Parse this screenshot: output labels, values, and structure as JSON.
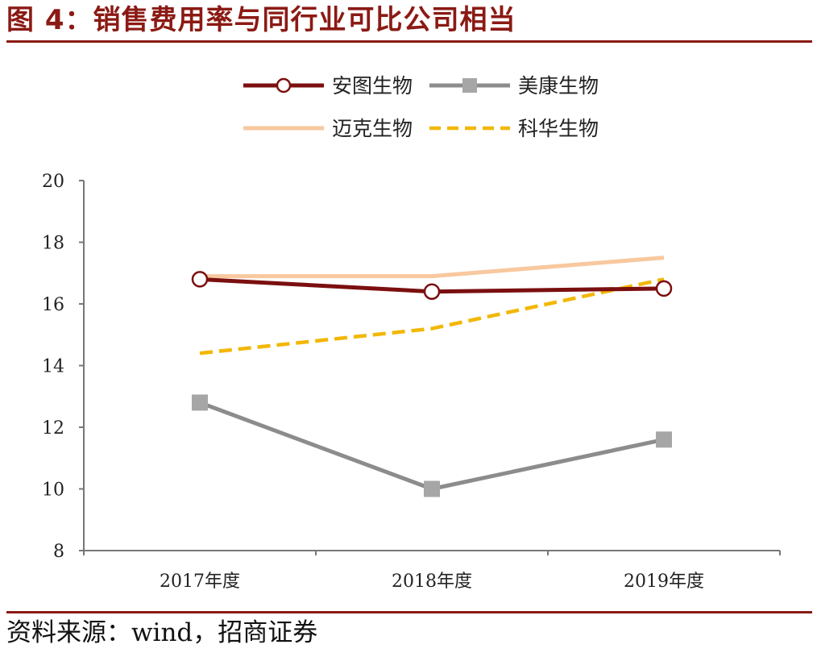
{
  "header": {
    "title": "图 4：销售费用率与同行业可比公司相当"
  },
  "footer": {
    "source": "资料来源：wind，招商证券"
  },
  "chart_data": {
    "type": "line",
    "title": "",
    "xlabel": "",
    "ylabel": "",
    "categories": [
      "2017年度",
      "2018年度",
      "2019年度"
    ],
    "ylim": [
      8,
      20
    ],
    "yticks": [
      8,
      10,
      12,
      14,
      16,
      18,
      20
    ],
    "grid": false,
    "legend_position": "top",
    "series": [
      {
        "name": "安图生物",
        "values": [
          16.8,
          16.4,
          16.5
        ],
        "color": "#7b0f0f",
        "style": "solid",
        "marker": "circle-open"
      },
      {
        "name": "美康生物",
        "values": [
          12.8,
          10.0,
          11.6
        ],
        "color": "#8c8c8c",
        "style": "solid",
        "marker": "square",
        "marker_color": "#a6a6a6"
      },
      {
        "name": "迈克生物",
        "values": [
          16.9,
          16.9,
          17.5
        ],
        "color": "#f8c89e",
        "style": "solid",
        "marker": "none"
      },
      {
        "name": "科华生物",
        "values": [
          14.4,
          15.2,
          16.8
        ],
        "color": "#f2b705",
        "style": "dashed",
        "marker": "none"
      }
    ]
  }
}
